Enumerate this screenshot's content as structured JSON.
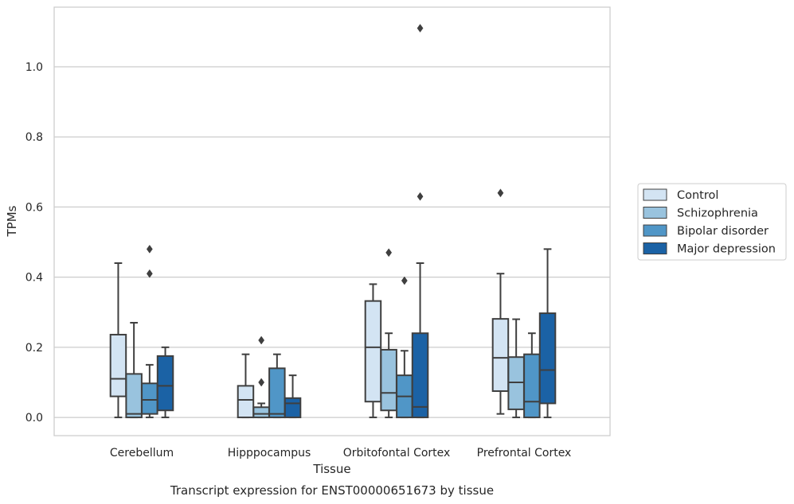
{
  "chart_data": {
    "type": "box",
    "xlabel": "Tissue",
    "ylabel": "TPMs",
    "caption": "Transcript expression for ENST00000651673 by tissue",
    "ylim": [
      -0.052,
      1.17
    ],
    "yticks": [
      0.0,
      0.2,
      0.4,
      0.6,
      0.8,
      1.0
    ],
    "ytick_labels": [
      "0.0",
      "0.2",
      "0.4",
      "0.6",
      "0.8",
      "1.0"
    ],
    "grid": "horizontal",
    "legend_position": "right",
    "categories": [
      "Cerebellum",
      "Hipppocampus",
      "Orbitofontal Cortex",
      "Prefrontal Cortex"
    ],
    "series": [
      {
        "name": "Control",
        "color": "#d3e4f3",
        "boxes": [
          {
            "whislo": 0.0,
            "q1": 0.06,
            "med": 0.11,
            "q3": 0.236,
            "whishi": 0.44,
            "fliers": []
          },
          {
            "whislo": 0.0,
            "q1": 0.0,
            "med": 0.05,
            "q3": 0.09,
            "whishi": 0.18,
            "fliers": []
          },
          {
            "whislo": 0.0,
            "q1": 0.045,
            "med": 0.2,
            "q3": 0.332,
            "whishi": 0.38,
            "fliers": []
          },
          {
            "whislo": 0.01,
            "q1": 0.075,
            "med": 0.17,
            "q3": 0.281,
            "whishi": 0.41,
            "fliers": [
              0.64
            ]
          }
        ]
      },
      {
        "name": "Schizophrenia",
        "color": "#99c3de",
        "boxes": [
          {
            "whislo": 0.0,
            "q1": 0.0,
            "med": 0.01,
            "q3": 0.124,
            "whishi": 0.27,
            "fliers": []
          },
          {
            "whislo": 0.0,
            "q1": 0.0,
            "med": 0.01,
            "q3": 0.029,
            "whishi": 0.04,
            "fliers": [
              0.1,
              0.22
            ]
          },
          {
            "whislo": 0.0,
            "q1": 0.02,
            "med": 0.07,
            "q3": 0.193,
            "whishi": 0.24,
            "fliers": [
              0.47
            ]
          },
          {
            "whislo": 0.0,
            "q1": 0.023,
            "med": 0.1,
            "q3": 0.172,
            "whishi": 0.28,
            "fliers": []
          }
        ]
      },
      {
        "name": "Bipolar disorder",
        "color": "#5096c7",
        "boxes": [
          {
            "whislo": 0.0,
            "q1": 0.01,
            "med": 0.05,
            "q3": 0.097,
            "whishi": 0.15,
            "fliers": [
              0.41,
              0.48
            ]
          },
          {
            "whislo": 0.0,
            "q1": 0.0,
            "med": 0.01,
            "q3": 0.14,
            "whishi": 0.18,
            "fliers": []
          },
          {
            "whislo": 0.0,
            "q1": 0.0,
            "med": 0.06,
            "q3": 0.12,
            "whishi": 0.19,
            "fliers": [
              0.39
            ]
          },
          {
            "whislo": 0.0,
            "q1": 0.0,
            "med": 0.045,
            "q3": 0.18,
            "whishi": 0.24,
            "fliers": []
          }
        ]
      },
      {
        "name": "Major depression",
        "color": "#1b62a5",
        "boxes": [
          {
            "whislo": 0.0,
            "q1": 0.02,
            "med": 0.09,
            "q3": 0.175,
            "whishi": 0.2,
            "fliers": []
          },
          {
            "whislo": 0.0,
            "q1": 0.0,
            "med": 0.04,
            "q3": 0.055,
            "whishi": 0.12,
            "fliers": []
          },
          {
            "whislo": 0.0,
            "q1": 0.0,
            "med": 0.03,
            "q3": 0.24,
            "whishi": 0.44,
            "fliers": [
              0.63,
              1.11
            ]
          },
          {
            "whislo": 0.0,
            "q1": 0.04,
            "med": 0.135,
            "q3": 0.297,
            "whishi": 0.48,
            "fliers": []
          }
        ]
      }
    ]
  },
  "style": {
    "edge_color": "#3f3f3f",
    "grid_color": "#cccccc",
    "frame_color": "#cccccc"
  }
}
